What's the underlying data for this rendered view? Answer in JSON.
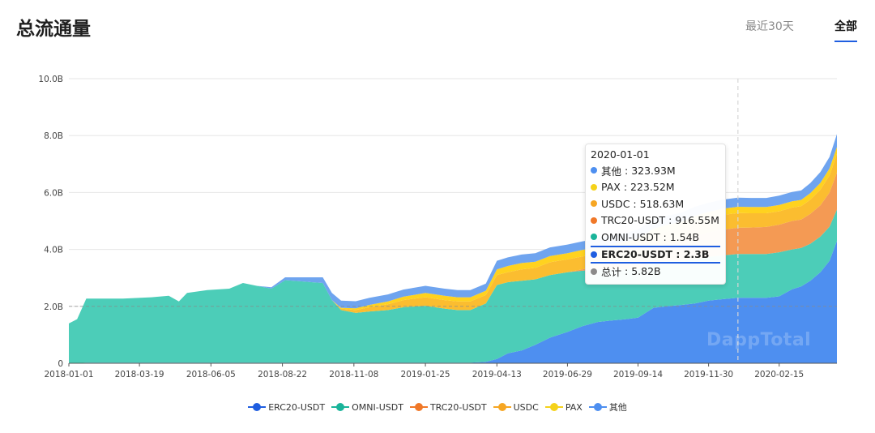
{
  "header": {
    "title": "总流通量",
    "tabs": [
      {
        "label": "最近30天",
        "active": false
      },
      {
        "label": "全部",
        "active": true
      }
    ]
  },
  "watermark": "DappTotal",
  "colors": {
    "ERC20-USDT": "#4e8ff0",
    "OMNI-USDT": "#4ccdb8",
    "TRC20-USDT": "#f49a54",
    "USDC": "#fbbd30",
    "PAX": "#ffd21f",
    "其他": "#6fa4ef",
    "accent": "#1f5ee0",
    "grid": "#e6e6e6"
  },
  "tooltip": {
    "date": "2020-01-01",
    "rows": [
      {
        "label": "其他",
        "value": "323.93M",
        "color": "#4e8ff0",
        "highlight": false
      },
      {
        "label": "PAX",
        "value": "223.52M",
        "color": "#f5d21a",
        "highlight": false
      },
      {
        "label": "USDC",
        "value": "518.63M",
        "color": "#f6a623",
        "highlight": false
      },
      {
        "label": "TRC20-USDT",
        "value": "916.55M",
        "color": "#f07828",
        "highlight": false
      },
      {
        "label": "OMNI-USDT",
        "value": "1.54B",
        "color": "#1ab49a",
        "highlight": false
      },
      {
        "label": "ERC20-USDT",
        "value": "2.3B",
        "color": "#1f5ee0",
        "highlight": true
      },
      {
        "label": "总计",
        "value": "5.82B",
        "color": "#8a8a8a",
        "highlight": false
      }
    ]
  },
  "chart_data": {
    "type": "area",
    "stacked": true,
    "title": "总流通量",
    "xlabel": "",
    "ylabel": "",
    "ylim": [
      0,
      10
    ],
    "y_unit": "B",
    "yticks": [
      {
        "value": 0,
        "label": "0"
      },
      {
        "value": 2,
        "label": "2.0B"
      },
      {
        "value": 4,
        "label": "4.0B"
      },
      {
        "value": 6,
        "label": "6.0B"
      },
      {
        "value": 8,
        "label": "8.0B"
      },
      {
        "value": 10,
        "label": "10.0B"
      }
    ],
    "xlim": [
      "2018-01-01",
      "2020-04-18"
    ],
    "xticks": [
      "2018-01-01",
      "2018-03-19",
      "2018-06-05",
      "2018-08-22",
      "2018-11-08",
      "2019-01-25",
      "2019-04-13",
      "2019-06-29",
      "2019-09-14",
      "2019-11-30",
      "2020-02-15"
    ],
    "crosshair_date": "2020-01-01",
    "reference_line": 2,
    "legend_position": "bottom",
    "x": [
      "2018-01-01",
      "2018-01-10",
      "2018-01-20",
      "2018-02-05",
      "2018-03-01",
      "2018-04-01",
      "2018-04-20",
      "2018-05-01",
      "2018-05-10",
      "2018-06-01",
      "2018-06-25",
      "2018-07-10",
      "2018-07-25",
      "2018-08-10",
      "2018-08-25",
      "2018-09-15",
      "2018-10-05",
      "2018-10-15",
      "2018-10-25",
      "2018-11-10",
      "2018-11-25",
      "2018-12-15",
      "2019-01-01",
      "2019-01-25",
      "2019-02-15",
      "2019-03-01",
      "2019-03-15",
      "2019-04-01",
      "2019-04-13",
      "2019-04-25",
      "2019-05-10",
      "2019-05-25",
      "2019-06-10",
      "2019-06-29",
      "2019-07-15",
      "2019-08-01",
      "2019-08-15",
      "2019-09-01",
      "2019-09-14",
      "2019-10-01",
      "2019-10-15",
      "2019-11-01",
      "2019-11-15",
      "2019-11-30",
      "2019-12-15",
      "2020-01-01",
      "2020-01-15",
      "2020-02-01",
      "2020-02-15",
      "2020-02-29",
      "2020-03-10",
      "2020-03-20",
      "2020-03-31",
      "2020-04-10",
      "2020-04-18"
    ],
    "series": [
      {
        "name": "ERC20-USDT",
        "values": [
          0,
          0,
          0.02,
          0.02,
          0.02,
          0.02,
          0.02,
          0.02,
          0.02,
          0.02,
          0.02,
          0.02,
          0.02,
          0.02,
          0.02,
          0.02,
          0.02,
          0.02,
          0.02,
          0.02,
          0.02,
          0.02,
          0.02,
          0.02,
          0.02,
          0.02,
          0.02,
          0.05,
          0.15,
          0.35,
          0.45,
          0.65,
          0.9,
          1.1,
          1.3,
          1.45,
          1.5,
          1.55,
          1.6,
          1.95,
          2.0,
          2.05,
          2.1,
          2.2,
          2.25,
          2.3,
          2.3,
          2.3,
          2.35,
          2.6,
          2.7,
          2.9,
          3.2,
          3.6,
          4.3
        ]
      },
      {
        "name": "OMNI-USDT",
        "values": [
          1.4,
          1.55,
          2.25,
          2.25,
          2.25,
          2.3,
          2.35,
          2.15,
          2.45,
          2.55,
          2.6,
          2.8,
          2.7,
          2.6,
          2.9,
          2.85,
          2.8,
          2.2,
          1.85,
          1.75,
          1.8,
          1.85,
          1.95,
          2.0,
          1.9,
          1.85,
          1.85,
          2.05,
          2.6,
          2.5,
          2.45,
          2.3,
          2.2,
          2.1,
          1.95,
          1.85,
          1.8,
          1.75,
          1.7,
          1.6,
          1.58,
          1.55,
          1.55,
          1.54,
          1.54,
          1.54,
          1.54,
          1.54,
          1.55,
          1.4,
          1.35,
          1.3,
          1.25,
          1.2,
          1.1
        ]
      },
      {
        "name": "TRC20-USDT",
        "values": [
          0,
          0,
          0,
          0,
          0,
          0,
          0,
          0,
          0,
          0,
          0,
          0,
          0,
          0,
          0,
          0,
          0,
          0,
          0,
          0,
          0,
          0,
          0,
          0,
          0,
          0,
          0,
          0,
          0,
          0,
          0,
          0,
          0,
          0,
          0.05,
          0.1,
          0.2,
          0.3,
          0.4,
          0.5,
          0.6,
          0.7,
          0.8,
          0.85,
          0.9,
          0.92,
          0.93,
          0.95,
          0.97,
          1.0,
          1.0,
          1.05,
          1.1,
          1.2,
          1.3
        ]
      },
      {
        "name": "USDC",
        "values": [
          0,
          0,
          0,
          0,
          0,
          0,
          0,
          0,
          0,
          0,
          0,
          0,
          0,
          0,
          0,
          0,
          0,
          0,
          0.05,
          0.1,
          0.15,
          0.2,
          0.25,
          0.3,
          0.3,
          0.3,
          0.3,
          0.3,
          0.35,
          0.35,
          0.4,
          0.4,
          0.45,
          0.45,
          0.45,
          0.45,
          0.45,
          0.45,
          0.45,
          0.45,
          0.45,
          0.45,
          0.5,
          0.5,
          0.52,
          0.52,
          0.5,
          0.48,
          0.47,
          0.47,
          0.47,
          0.5,
          0.55,
          0.6,
          0.65
        ]
      },
      {
        "name": "PAX",
        "values": [
          0,
          0,
          0,
          0,
          0,
          0,
          0,
          0,
          0,
          0,
          0,
          0,
          0,
          0,
          0,
          0,
          0,
          0,
          0.03,
          0.06,
          0.08,
          0.1,
          0.12,
          0.15,
          0.15,
          0.15,
          0.15,
          0.15,
          0.2,
          0.22,
          0.22,
          0.22,
          0.22,
          0.22,
          0.23,
          0.23,
          0.23,
          0.23,
          0.23,
          0.23,
          0.23,
          0.23,
          0.23,
          0.23,
          0.22,
          0.22,
          0.22,
          0.22,
          0.22,
          0.22,
          0.22,
          0.23,
          0.24,
          0.25,
          0.25
        ]
      },
      {
        "name": "其他",
        "values": [
          0,
          0,
          0,
          0,
          0,
          0,
          0,
          0,
          0,
          0,
          0,
          0,
          0,
          0.05,
          0.1,
          0.15,
          0.2,
          0.25,
          0.25,
          0.25,
          0.25,
          0.25,
          0.25,
          0.25,
          0.25,
          0.25,
          0.25,
          0.25,
          0.3,
          0.3,
          0.3,
          0.3,
          0.3,
          0.3,
          0.3,
          0.3,
          0.3,
          0.3,
          0.32,
          0.32,
          0.32,
          0.32,
          0.32,
          0.32,
          0.32,
          0.32,
          0.32,
          0.32,
          0.33,
          0.33,
          0.33,
          0.35,
          0.38,
          0.4,
          0.45
        ]
      }
    ]
  },
  "legend": [
    {
      "label": "ERC20-USDT",
      "color": "#1f5ee0"
    },
    {
      "label": "OMNI-USDT",
      "color": "#1ab49a"
    },
    {
      "label": "TRC20-USDT",
      "color": "#f07828"
    },
    {
      "label": "USDC",
      "color": "#f6a623"
    },
    {
      "label": "PAX",
      "color": "#f5d21a"
    },
    {
      "label": "其他",
      "color": "#4e8ff0"
    }
  ]
}
